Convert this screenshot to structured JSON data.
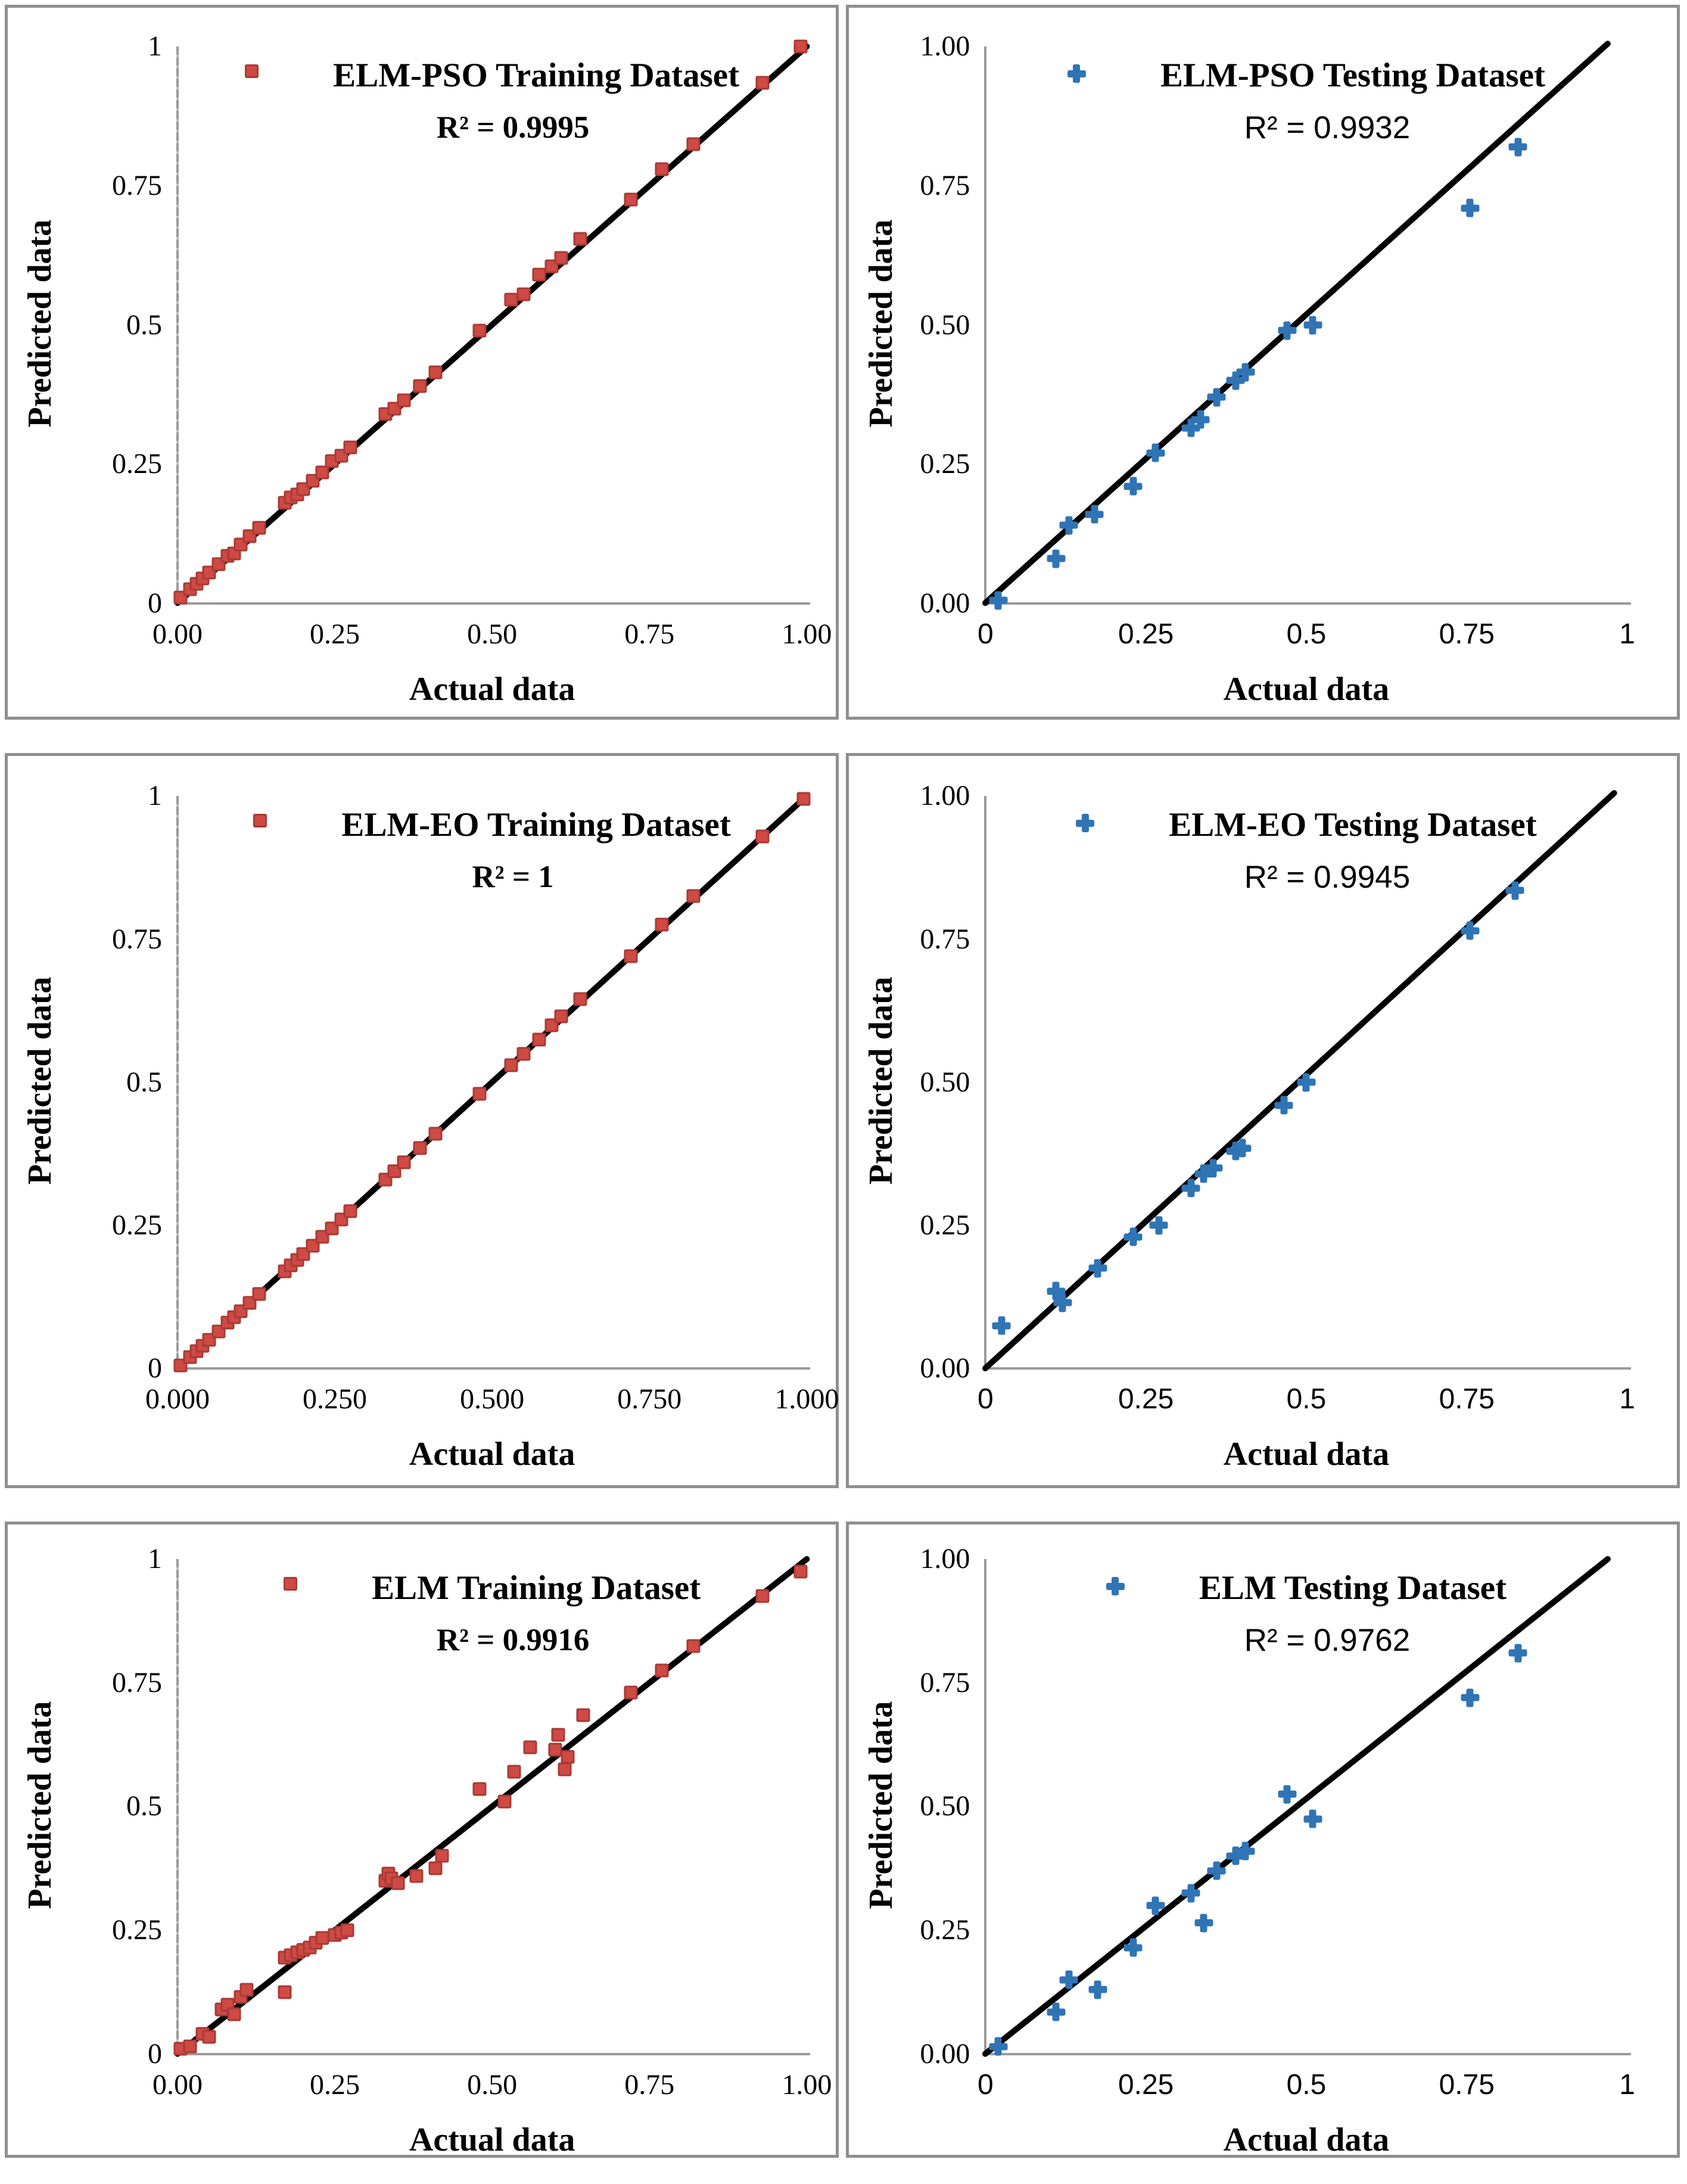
{
  "axis": {
    "x_label": "Actual data",
    "y_label": "Predicted data"
  },
  "colors": {
    "training_marker": "#cf4a44",
    "training_marker_border": "#a83a34",
    "testing_marker": "#2f74b5",
    "trend_line": "#000000",
    "axis_line": "#9a9a9a",
    "panel_border": "#8f8f8f"
  },
  "chart_data": [
    {
      "type": "scatter",
      "legend": "ELM-PSO Training Dataset",
      "r2": "R² = 0.9995",
      "r2_font": "serif",
      "marker": "square",
      "marker_color": "#cf4a44",
      "marker_border": "#a83a34",
      "x_label": "Actual data",
      "y_label": "Predicted data",
      "xlim": [
        0,
        1
      ],
      "ylim": [
        0,
        1
      ],
      "grid": false,
      "legend_position": "top-center",
      "x_ticks": [
        "0.00",
        "0.25",
        "0.50",
        "0.75",
        "1.00"
      ],
      "y_ticks": [
        "1",
        "0.75",
        "0.5",
        "0.25",
        "0"
      ],
      "tick_font_x": "serif",
      "tick_font_y": "serif",
      "line": [
        [
          0,
          0
        ],
        [
          1,
          1
        ]
      ],
      "points": [
        [
          0.005,
          0.01
        ],
        [
          0.02,
          0.025
        ],
        [
          0.03,
          0.035
        ],
        [
          0.04,
          0.045
        ],
        [
          0.05,
          0.055
        ],
        [
          0.065,
          0.07
        ],
        [
          0.08,
          0.085
        ],
        [
          0.09,
          0.09
        ],
        [
          0.1,
          0.105
        ],
        [
          0.115,
          0.12
        ],
        [
          0.13,
          0.135
        ],
        [
          0.17,
          0.18
        ],
        [
          0.18,
          0.19
        ],
        [
          0.19,
          0.195
        ],
        [
          0.2,
          0.205
        ],
        [
          0.215,
          0.22
        ],
        [
          0.23,
          0.235
        ],
        [
          0.245,
          0.255
        ],
        [
          0.26,
          0.265
        ],
        [
          0.275,
          0.28
        ],
        [
          0.33,
          0.34
        ],
        [
          0.345,
          0.35
        ],
        [
          0.36,
          0.365
        ],
        [
          0.385,
          0.39
        ],
        [
          0.41,
          0.415
        ],
        [
          0.48,
          0.49
        ],
        [
          0.53,
          0.545
        ],
        [
          0.55,
          0.555
        ],
        [
          0.575,
          0.59
        ],
        [
          0.595,
          0.605
        ],
        [
          0.61,
          0.62
        ],
        [
          0.64,
          0.655
        ],
        [
          0.72,
          0.725
        ],
        [
          0.77,
          0.78
        ],
        [
          0.82,
          0.825
        ],
        [
          0.93,
          0.935
        ],
        [
          0.99,
          1.0
        ]
      ]
    },
    {
      "type": "scatter",
      "legend": "ELM-PSO Testing Dataset",
      "r2": "R² = 0.9932",
      "r2_font": "sans",
      "marker": "plus",
      "marker_color": "#2f74b5",
      "marker_border": "#2f74b5",
      "x_label": "Actual data",
      "y_label": "Predicted data",
      "xlim": [
        0,
        1
      ],
      "ylim": [
        0,
        1
      ],
      "grid": false,
      "legend_position": "top-center",
      "x_ticks": [
        "0",
        "0.25",
        "0.5",
        "0.75",
        "1"
      ],
      "y_ticks": [
        "1.00",
        "0.75",
        "0.50",
        "0.25",
        "0.00"
      ],
      "tick_font_x": "sans",
      "tick_font_y": "serif",
      "line": [
        [
          0,
          0
        ],
        [
          0.97,
          1.005
        ]
      ],
      "points": [
        [
          0.02,
          0.005
        ],
        [
          0.11,
          0.08
        ],
        [
          0.13,
          0.14
        ],
        [
          0.17,
          0.16
        ],
        [
          0.23,
          0.21
        ],
        [
          0.265,
          0.27
        ],
        [
          0.32,
          0.315
        ],
        [
          0.335,
          0.33
        ],
        [
          0.36,
          0.37
        ],
        [
          0.39,
          0.4
        ],
        [
          0.405,
          0.415
        ],
        [
          0.47,
          0.49
        ],
        [
          0.51,
          0.5
        ],
        [
          0.755,
          0.71
        ],
        [
          0.83,
          0.82
        ]
      ]
    },
    {
      "type": "scatter",
      "legend": "ELM-EO Training Dataset",
      "r2": "R² = 1",
      "r2_font": "serif",
      "marker": "square",
      "marker_color": "#cf4a44",
      "marker_border": "#a83a34",
      "x_label": "Actual data",
      "y_label": "Predicted data",
      "xlim": [
        0,
        1
      ],
      "ylim": [
        0,
        1
      ],
      "grid": false,
      "legend_position": "top-center",
      "x_ticks": [
        "0.000",
        "0.250",
        "0.500",
        "0.750",
        "1.000"
      ],
      "y_ticks": [
        "1",
        "0.75",
        "0.5",
        "0.25",
        "0"
      ],
      "tick_font_x": "serif",
      "tick_font_y": "serif",
      "line": [
        [
          0,
          0
        ],
        [
          1,
          1
        ]
      ],
      "points": [
        [
          0.005,
          0.005
        ],
        [
          0.02,
          0.02
        ],
        [
          0.03,
          0.03
        ],
        [
          0.04,
          0.04
        ],
        [
          0.05,
          0.05
        ],
        [
          0.065,
          0.065
        ],
        [
          0.08,
          0.08
        ],
        [
          0.09,
          0.09
        ],
        [
          0.1,
          0.1
        ],
        [
          0.115,
          0.115
        ],
        [
          0.13,
          0.13
        ],
        [
          0.17,
          0.17
        ],
        [
          0.18,
          0.18
        ],
        [
          0.19,
          0.19
        ],
        [
          0.2,
          0.2
        ],
        [
          0.215,
          0.215
        ],
        [
          0.23,
          0.23
        ],
        [
          0.245,
          0.245
        ],
        [
          0.26,
          0.26
        ],
        [
          0.275,
          0.275
        ],
        [
          0.33,
          0.33
        ],
        [
          0.345,
          0.345
        ],
        [
          0.36,
          0.36
        ],
        [
          0.385,
          0.385
        ],
        [
          0.41,
          0.41
        ],
        [
          0.48,
          0.48
        ],
        [
          0.53,
          0.53
        ],
        [
          0.55,
          0.55
        ],
        [
          0.575,
          0.575
        ],
        [
          0.595,
          0.6
        ],
        [
          0.61,
          0.615
        ],
        [
          0.64,
          0.645
        ],
        [
          0.72,
          0.72
        ],
        [
          0.77,
          0.775
        ],
        [
          0.82,
          0.825
        ],
        [
          0.93,
          0.93
        ],
        [
          0.995,
          0.995
        ]
      ]
    },
    {
      "type": "scatter",
      "legend": "ELM-EO Testing Dataset",
      "r2": "R² = 0.9945",
      "r2_font": "sans",
      "marker": "plus",
      "marker_color": "#2f74b5",
      "marker_border": "#2f74b5",
      "x_label": "Actual data",
      "y_label": "Predicted data",
      "xlim": [
        0,
        1
      ],
      "ylim": [
        0,
        1
      ],
      "grid": false,
      "legend_position": "top-center",
      "x_ticks": [
        "0",
        "0.25",
        "0.5",
        "0.75",
        "1"
      ],
      "y_ticks": [
        "1.00",
        "0.75",
        "0.50",
        "0.25",
        "0.00"
      ],
      "tick_font_x": "sans",
      "tick_font_y": "serif",
      "line": [
        [
          0,
          0
        ],
        [
          0.98,
          1.005
        ]
      ],
      "points": [
        [
          0.025,
          0.075
        ],
        [
          0.11,
          0.135
        ],
        [
          0.12,
          0.115
        ],
        [
          0.175,
          0.175
        ],
        [
          0.23,
          0.23
        ],
        [
          0.27,
          0.25
        ],
        [
          0.32,
          0.315
        ],
        [
          0.34,
          0.34
        ],
        [
          0.355,
          0.35
        ],
        [
          0.39,
          0.38
        ],
        [
          0.4,
          0.385
        ],
        [
          0.465,
          0.46
        ],
        [
          0.5,
          0.5
        ],
        [
          0.755,
          0.765
        ],
        [
          0.825,
          0.835
        ]
      ]
    },
    {
      "type": "scatter",
      "legend": "ELM Training Dataset",
      "r2": "R² = 0.9916",
      "r2_font": "serif",
      "marker": "square",
      "marker_color": "#cf4a44",
      "marker_border": "#a83a34",
      "x_label": "Actual data",
      "y_label": "Predicted data",
      "xlim": [
        0,
        1
      ],
      "ylim": [
        0,
        1
      ],
      "grid": false,
      "legend_position": "top-center",
      "x_ticks": [
        "0.00",
        "0.25",
        "0.50",
        "0.75",
        "1.00"
      ],
      "y_ticks": [
        "1",
        "0.75",
        "0.5",
        "0.25",
        "0"
      ],
      "tick_font_x": "serif",
      "tick_font_y": "serif",
      "line": [
        [
          0,
          0
        ],
        [
          1,
          1
        ]
      ],
      "points": [
        [
          0.005,
          0.01
        ],
        [
          0.02,
          0.015
        ],
        [
          0.04,
          0.04
        ],
        [
          0.05,
          0.035
        ],
        [
          0.07,
          0.09
        ],
        [
          0.08,
          0.1
        ],
        [
          0.09,
          0.08
        ],
        [
          0.1,
          0.115
        ],
        [
          0.11,
          0.13
        ],
        [
          0.17,
          0.125
        ],
        [
          0.17,
          0.195
        ],
        [
          0.18,
          0.2
        ],
        [
          0.19,
          0.205
        ],
        [
          0.2,
          0.21
        ],
        [
          0.21,
          0.215
        ],
        [
          0.22,
          0.225
        ],
        [
          0.23,
          0.235
        ],
        [
          0.25,
          0.24
        ],
        [
          0.26,
          0.245
        ],
        [
          0.27,
          0.25
        ],
        [
          0.33,
          0.35
        ],
        [
          0.335,
          0.365
        ],
        [
          0.34,
          0.355
        ],
        [
          0.35,
          0.345
        ],
        [
          0.38,
          0.36
        ],
        [
          0.41,
          0.375
        ],
        [
          0.42,
          0.4
        ],
        [
          0.48,
          0.535
        ],
        [
          0.52,
          0.51
        ],
        [
          0.535,
          0.57
        ],
        [
          0.56,
          0.62
        ],
        [
          0.6,
          0.615
        ],
        [
          0.605,
          0.645
        ],
        [
          0.615,
          0.575
        ],
        [
          0.62,
          0.6
        ],
        [
          0.645,
          0.685
        ],
        [
          0.72,
          0.73
        ],
        [
          0.77,
          0.775
        ],
        [
          0.82,
          0.825
        ],
        [
          0.93,
          0.925
        ],
        [
          0.99,
          0.975
        ]
      ]
    },
    {
      "type": "scatter",
      "legend": "ELM Testing Dataset",
      "r2": "R² = 0.9762",
      "r2_font": "sans",
      "marker": "plus",
      "marker_color": "#2f74b5",
      "marker_border": "#2f74b5",
      "x_label": "Actual data",
      "y_label": "Predicted data",
      "xlim": [
        0,
        1
      ],
      "ylim": [
        0,
        1
      ],
      "grid": false,
      "legend_position": "top-center",
      "x_ticks": [
        "0",
        "0.25",
        "0.5",
        "0.75",
        "1"
      ],
      "y_ticks": [
        "1.00",
        "0.75",
        "0.50",
        "0.25",
        "0.00"
      ],
      "tick_font_x": "sans",
      "tick_font_y": "serif",
      "line": [
        [
          0,
          0
        ],
        [
          0.97,
          1.0
        ]
      ],
      "points": [
        [
          0.02,
          0.015
        ],
        [
          0.11,
          0.085
        ],
        [
          0.13,
          0.15
        ],
        [
          0.175,
          0.13
        ],
        [
          0.23,
          0.215
        ],
        [
          0.265,
          0.3
        ],
        [
          0.32,
          0.325
        ],
        [
          0.34,
          0.265
        ],
        [
          0.36,
          0.37
        ],
        [
          0.39,
          0.4
        ],
        [
          0.405,
          0.41
        ],
        [
          0.47,
          0.525
        ],
        [
          0.51,
          0.475
        ],
        [
          0.755,
          0.72
        ],
        [
          0.83,
          0.81
        ]
      ]
    }
  ]
}
